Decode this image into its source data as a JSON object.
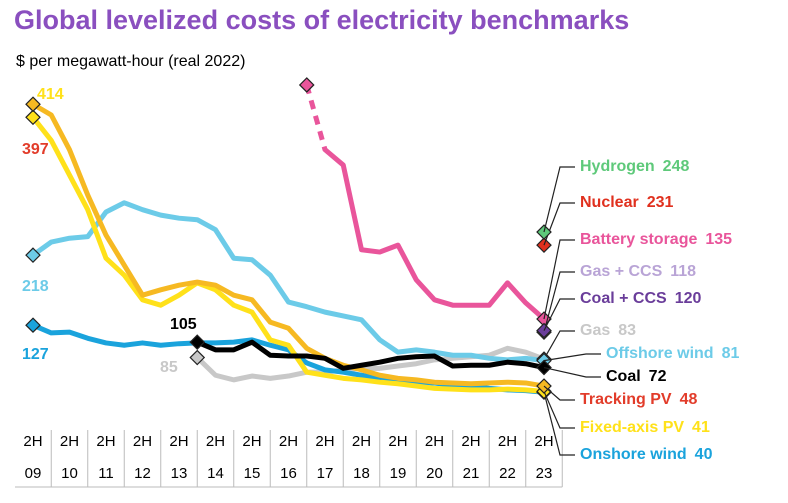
{
  "chart_data": {
    "type": "line",
    "title": "Global levelized costs of electricity benchmarks",
    "subtitle": "$ per megawatt-hour (real 2022)",
    "categories": [
      "2H",
      null,
      "2H",
      null,
      "2H",
      null,
      "2H",
      null,
      "2H",
      null,
      "2H",
      null,
      "2H",
      null,
      "2H",
      null,
      "2H",
      null,
      "2H",
      null,
      "2H",
      null,
      "2H",
      null,
      "2H",
      null,
      "2H",
      null,
      "2H"
    ],
    "category_years": [
      "09",
      null,
      "10",
      null,
      "11",
      null,
      "12",
      null,
      "13",
      null,
      "14",
      null,
      "15",
      null,
      "16",
      null,
      "17",
      null,
      "18",
      null,
      "19",
      null,
      "20",
      null,
      "21",
      null,
      "22",
      null,
      "23"
    ],
    "ylim": [
      0,
      450
    ],
    "series": [
      {
        "name": "Gas",
        "color": "#c8c8c8",
        "label_color": "#c8c8c8",
        "values": [
          null,
          null,
          null,
          null,
          null,
          null,
          null,
          null,
          null,
          85,
          62,
          56,
          61,
          58,
          61,
          66,
          66,
          69,
          71,
          71,
          74,
          77,
          82,
          84,
          86,
          88,
          97,
          92,
          83
        ]
      },
      {
        "name": "Onshore wind",
        "color": "#1aa3dc",
        "values": [
          127,
          117,
          118,
          110,
          104,
          101,
          104,
          101,
          103,
          104,
          104,
          105,
          108,
          101,
          95,
          78,
          69,
          66,
          62,
          58,
          56,
          53,
          52,
          49,
          48,
          45,
          43,
          42,
          40
        ]
      },
      {
        "name": "Offshore wind",
        "color": "#6ccbe8",
        "values": [
          218,
          235,
          240,
          242,
          274,
          286,
          277,
          270,
          266,
          264,
          251,
          214,
          212,
          192,
          157,
          151,
          144,
          139,
          134,
          108,
          92,
          95,
          92,
          88,
          88,
          84,
          82,
          84,
          81
        ]
      },
      {
        "name": "Fixed-axis PV",
        "color": "#ffe11a",
        "start_label_color": "#e23c2a",
        "values": [
          397,
          367,
          322,
          277,
          214,
          192,
          160,
          153,
          166,
          182,
          173,
          153,
          144,
          108,
          101,
          66,
          62,
          58,
          56,
          53,
          51,
          48,
          45,
          44,
          43,
          43,
          44,
          43,
          41
        ]
      },
      {
        "name": "Tracking PV",
        "color": "#f6b922",
        "label_color": "#e23c2a",
        "start_label_color": "#ffe11a",
        "values": [
          414,
          400,
          355,
          296,
          244,
          205,
          166,
          173,
          179,
          183,
          179,
          166,
          160,
          131,
          123,
          97,
          84,
          75,
          69,
          62,
          58,
          56,
          53,
          52,
          51,
          52,
          53,
          52,
          48
        ]
      },
      {
        "name": "Coal",
        "color": "#000000",
        "values": [
          null,
          null,
          null,
          null,
          null,
          null,
          null,
          null,
          null,
          105,
          95,
          95,
          105,
          88,
          87,
          87,
          84,
          71,
          75,
          79,
          84,
          86,
          87,
          74,
          75,
          75,
          79,
          77,
          72
        ]
      },
      {
        "name": "Battery storage",
        "color": "#e9559b",
        "dash_until": 16,
        "values": [
          null,
          null,
          null,
          null,
          null,
          null,
          null,
          null,
          null,
          null,
          null,
          null,
          null,
          null,
          null,
          439,
          355,
          335,
          225,
          222,
          231,
          186,
          160,
          153,
          153,
          153,
          182,
          156,
          135
        ]
      },
      {
        "name": "Gas + CCS",
        "color": "#b9a4d6",
        "values": [
          null,
          null,
          null,
          null,
          null,
          null,
          null,
          null,
          null,
          null,
          null,
          null,
          null,
          null,
          null,
          null,
          null,
          null,
          null,
          null,
          null,
          null,
          null,
          null,
          null,
          null,
          null,
          null,
          118
        ]
      },
      {
        "name": "Coal + CCS",
        "color": "#6a3d9a",
        "values": [
          null,
          null,
          null,
          null,
          null,
          null,
          null,
          null,
          null,
          null,
          null,
          null,
          null,
          null,
          null,
          null,
          null,
          null,
          null,
          null,
          null,
          null,
          null,
          null,
          null,
          null,
          null,
          null,
          120
        ]
      },
      {
        "name": "Nuclear",
        "color": "#e0301e",
        "values": [
          null,
          null,
          null,
          null,
          null,
          null,
          null,
          null,
          null,
          null,
          null,
          null,
          null,
          null,
          null,
          null,
          null,
          null,
          null,
          null,
          null,
          null,
          null,
          null,
          null,
          null,
          null,
          null,
          231
        ]
      },
      {
        "name": "Hydrogen",
        "color": "#5ec97a",
        "values": [
          null,
          null,
          null,
          null,
          null,
          null,
          null,
          null,
          null,
          null,
          null,
          null,
          null,
          null,
          null,
          null,
          null,
          null,
          null,
          null,
          null,
          null,
          null,
          null,
          null,
          null,
          null,
          null,
          248
        ]
      }
    ]
  }
}
